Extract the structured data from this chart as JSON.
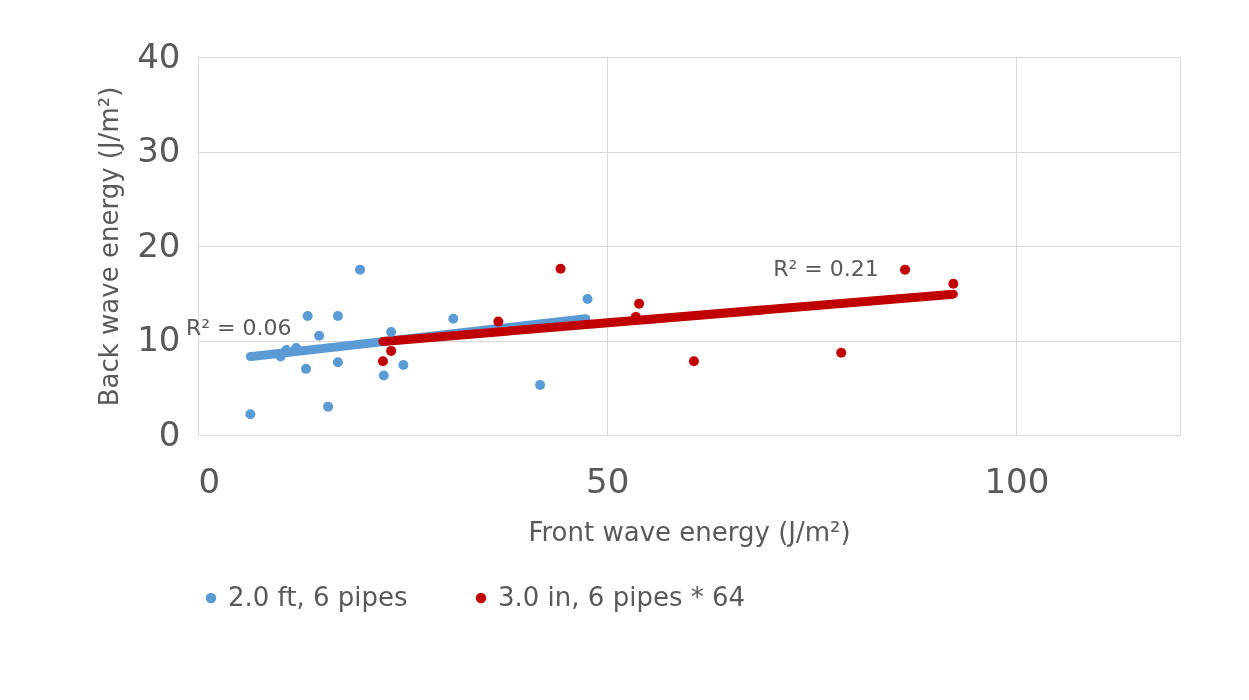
{
  "chart_data": {
    "type": "scatter",
    "xlabel": "Front wave energy (J/m²)",
    "ylabel": "Back wave energy (J/m²)",
    "xlim": [
      0,
      120
    ],
    "xticks": [
      0,
      50,
      100
    ],
    "ylim": [
      0,
      40
    ],
    "yticks": [
      0,
      10,
      20,
      30,
      40
    ],
    "grid": true,
    "legend": "bottom",
    "marker": "circle",
    "series": [
      {
        "name": "2.0 ft, 6 pipes",
        "color": "#5b9bd5",
        "x": [
          6.4,
          10.1,
          10.8,
          12.0,
          13.2,
          13.4,
          14.8,
          15.9,
          17.1,
          17.1,
          19.8,
          22.7,
          23.6,
          25.1,
          31.2,
          41.8,
          47.6
        ],
        "values": [
          2.2,
          8.3,
          9.0,
          9.2,
          7.0,
          12.6,
          10.5,
          3.0,
          12.6,
          7.7,
          17.5,
          6.3,
          10.9,
          7.4,
          12.3,
          5.3,
          14.4
        ]
      },
      {
        "name": "3.0 in, 6 pipes * 64",
        "color": "#c00000",
        "x": [
          22.6,
          23.6,
          36.7,
          44.3,
          53.5,
          53.9,
          60.6,
          78.6,
          86.4,
          92.3
        ],
        "values": [
          7.8,
          8.9,
          12.0,
          17.6,
          12.5,
          13.9,
          7.8,
          8.7,
          17.5,
          16.0
        ]
      },
      {
        "type": "line",
        "color": "#5b9bd5",
        "marker": "none",
        "line_style": "solid",
        "x": [
          6.4,
          47.4
        ],
        "values": [
          8.3,
          12.3
        ]
      },
      {
        "type": "line",
        "color": "#c00000",
        "marker": "none",
        "line_style": "solid",
        "x": [
          22.6,
          92.3
        ],
        "values": [
          9.9,
          14.9
        ]
      }
    ],
    "annotations": [
      "R² = 0.06",
      "R² = 0.21"
    ]
  }
}
